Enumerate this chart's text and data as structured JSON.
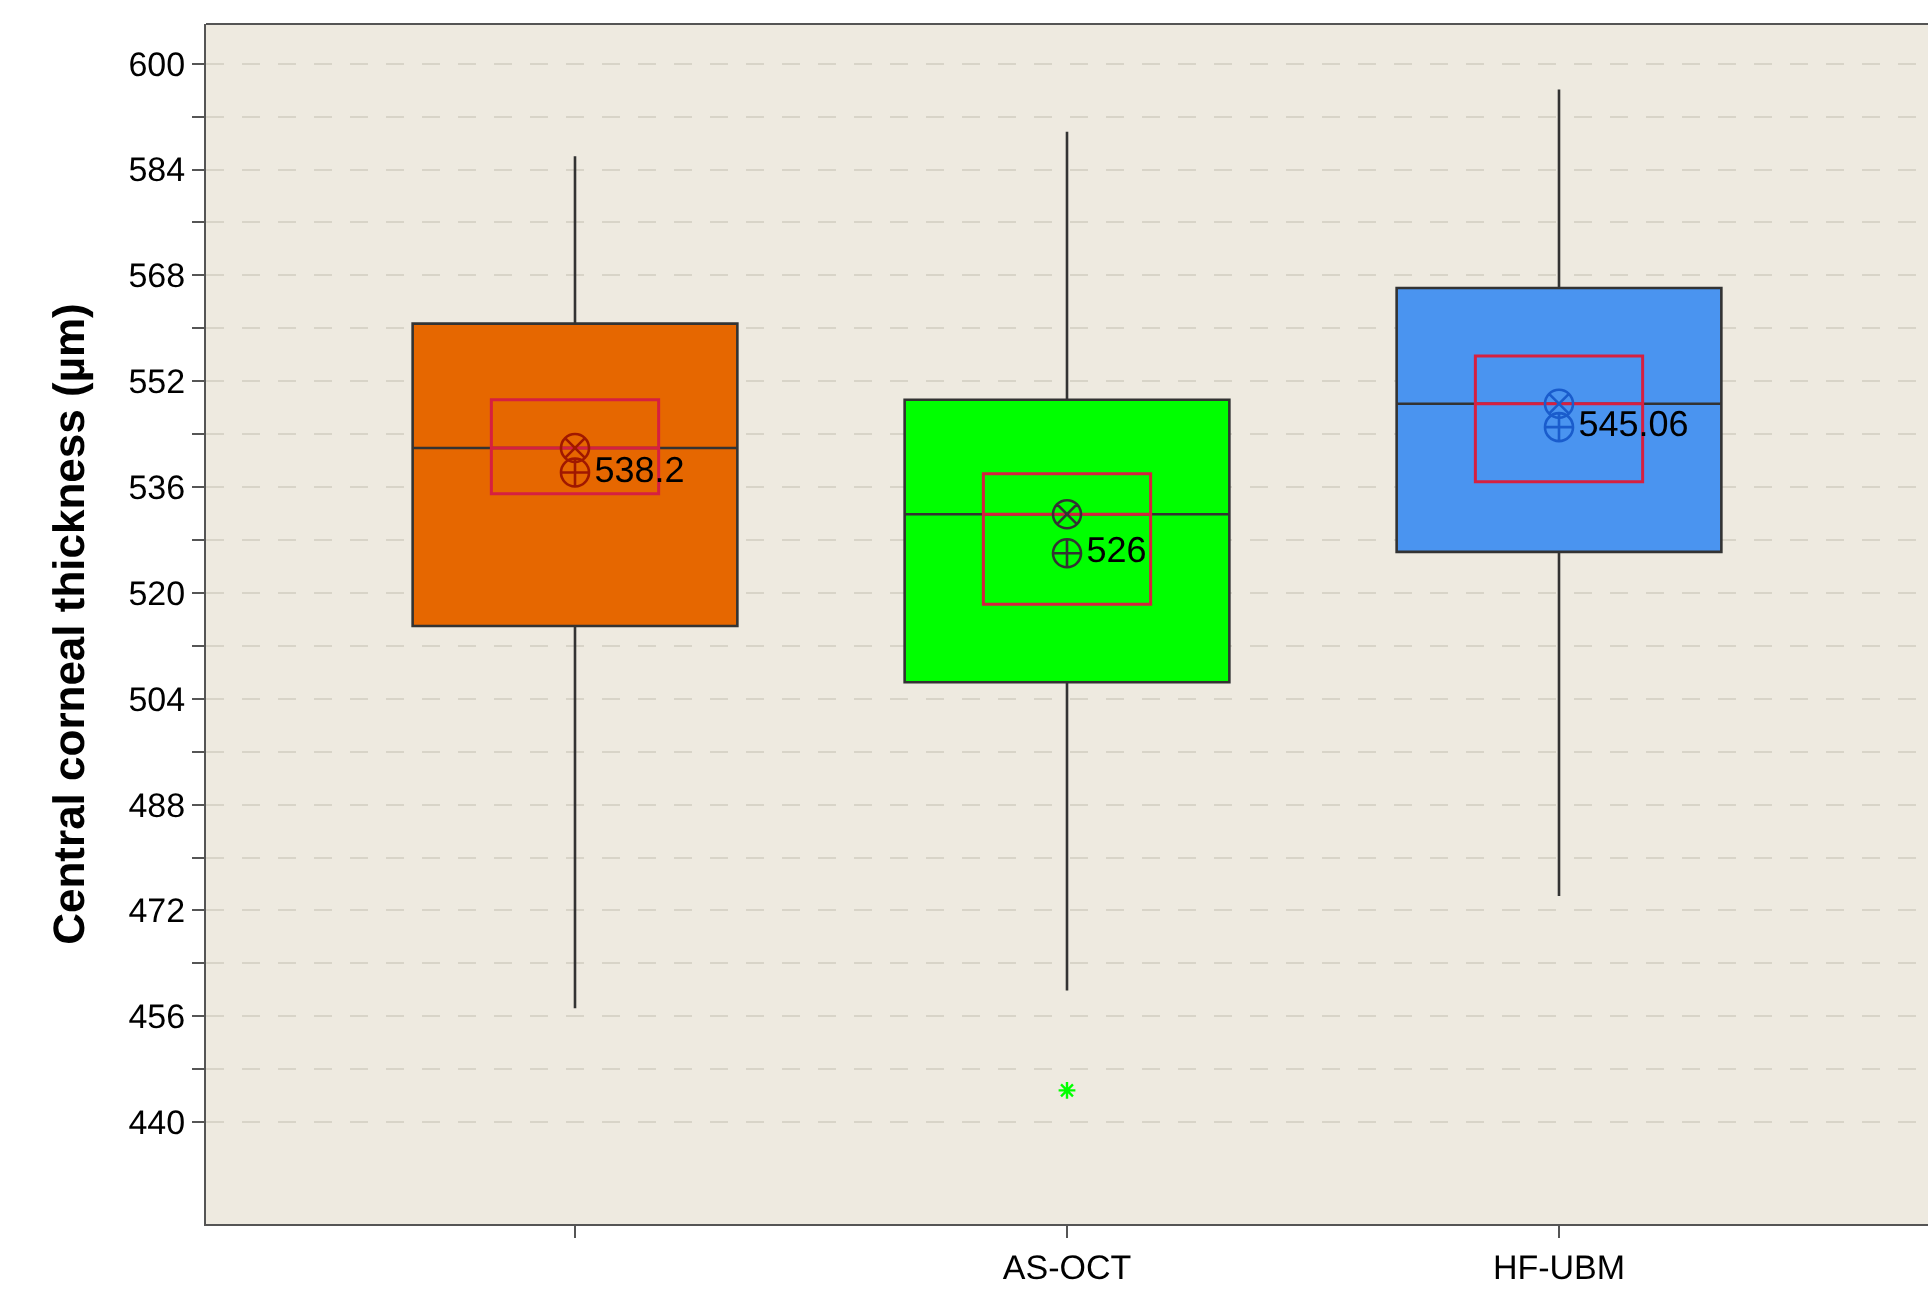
{
  "chart_data": {
    "type": "box",
    "ylabel": "Central corneal thickness (µm)",
    "categories": [
      null,
      "AS-OCT",
      "HF-UBM"
    ],
    "colors": [
      "#e66700",
      "#00ff00",
      "#4a94f0"
    ],
    "boxes": [
      {
        "low": 457.2,
        "q1": 515,
        "median": 541.9,
        "q3": 560.7,
        "high": 586
      },
      {
        "low": 459.9,
        "q1": 506.5,
        "median": 531.9,
        "q3": 549.2,
        "high": 589.7,
        "outliers": [
          444.8
        ]
      },
      {
        "low": 474.2,
        "q1": 526.2,
        "median": 548.6,
        "q3": 566.1,
        "high": 596.1
      }
    ],
    "series": [
      {
        "type": "box",
        "color": "#d62040",
        "boxes": [
          {
            "q1": 535.0,
            "median": 541.9,
            "q3": 549.2
          },
          {
            "q1": 518.3,
            "median": 531.9,
            "q3": 538.0
          },
          {
            "q1": 536.8,
            "median": 548.6,
            "q3": 555.8
          }
        ]
      },
      {
        "type": "scatter",
        "marker": "cross",
        "colors": [
          "#a01800",
          "#333333",
          "#1a5ccc"
        ],
        "values": [
          541.9,
          531.9,
          548.6
        ]
      },
      {
        "type": "scatter",
        "marker": "cross",
        "colors": [
          "#a01800",
          "#333333",
          "#1a5ccc"
        ],
        "values": [
          538.2,
          526,
          545.06
        ],
        "value_labels": [
          "538.2",
          "526",
          "545.06"
        ]
      }
    ],
    "ylim": [
      424.6,
      606
    ],
    "yticks": [
      440,
      {
        "value": 448,
        "label": null
      },
      456,
      {
        "value": 464,
        "label": null
      },
      472,
      {
        "value": 480,
        "label": null
      },
      488,
      {
        "value": 496,
        "label": null
      },
      504,
      {
        "value": 512,
        "label": null
      },
      520,
      {
        "value": 528,
        "label": null
      },
      536,
      {
        "value": 544,
        "label": null
      },
      552,
      {
        "value": 560,
        "label": null
      },
      568,
      {
        "value": 576,
        "label": null
      },
      584,
      {
        "value": 592,
        "label": null
      },
      600
    ],
    "grid": "y"
  }
}
